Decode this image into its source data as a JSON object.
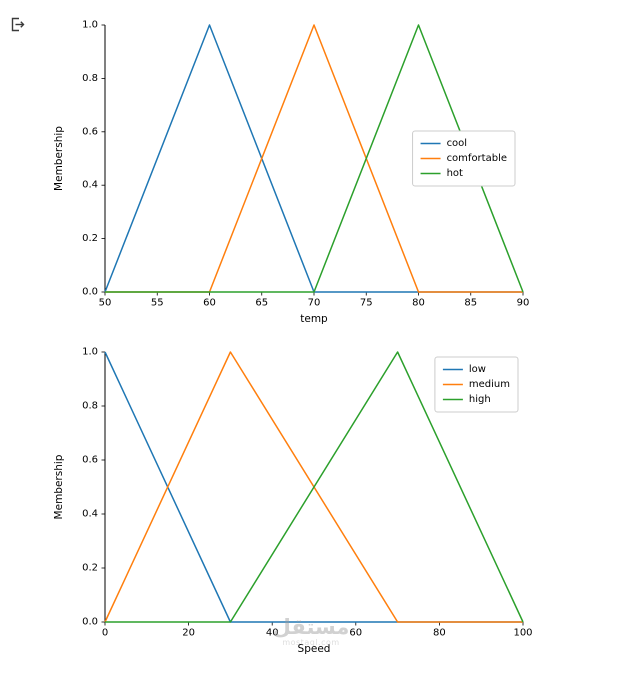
{
  "page": {
    "background": "#ffffff",
    "watermark": {
      "brand": "مستقل",
      "domain": "mostaql.com"
    }
  },
  "icons": {
    "export": "box-arrow-right"
  },
  "style": {
    "axis_color": "#000000",
    "legend_border": "#cccccc",
    "legend_background": "#ffffff"
  },
  "chart_data": [
    {
      "type": "line",
      "title": "",
      "xlabel": "temp",
      "ylabel": "Membership",
      "xlim": [
        50,
        90
      ],
      "ylim": [
        0.0,
        1.0
      ],
      "xticks": [
        50,
        55,
        60,
        65,
        70,
        75,
        80,
        85,
        90
      ],
      "yticks": [
        0.0,
        0.2,
        0.4,
        0.6,
        0.8,
        1.0
      ],
      "grid": false,
      "legend_position": "center-right",
      "series": [
        {
          "name": "cool",
          "color": "#1f77b4",
          "x": [
            50,
            60,
            70,
            90
          ],
          "y": [
            0,
            1,
            0,
            0
          ]
        },
        {
          "name": "comfortable",
          "color": "#ff7f0e",
          "x": [
            50,
            60,
            70,
            80,
            90
          ],
          "y": [
            0,
            0,
            1,
            0,
            0
          ]
        },
        {
          "name": "hot",
          "color": "#2ca02c",
          "x": [
            50,
            70,
            80,
            90
          ],
          "y": [
            0,
            0,
            1,
            0
          ]
        }
      ]
    },
    {
      "type": "line",
      "title": "",
      "xlabel": "Speed",
      "ylabel": "Membership",
      "xlim": [
        0,
        100
      ],
      "ylim": [
        0.0,
        1.0
      ],
      "xticks": [
        0,
        20,
        40,
        60,
        80,
        100
      ],
      "yticks": [
        0.0,
        0.2,
        0.4,
        0.6,
        0.8,
        1.0
      ],
      "grid": false,
      "legend_position": "upper-right",
      "series": [
        {
          "name": "low",
          "color": "#1f77b4",
          "x": [
            0,
            30,
            100
          ],
          "y": [
            1,
            0,
            0
          ]
        },
        {
          "name": "medium",
          "color": "#ff7f0e",
          "x": [
            0,
            30,
            70,
            100
          ],
          "y": [
            0,
            1,
            0,
            0
          ]
        },
        {
          "name": "high",
          "color": "#2ca02c",
          "x": [
            0,
            30,
            70,
            100
          ],
          "y": [
            0,
            0,
            1,
            0
          ]
        }
      ]
    }
  ]
}
